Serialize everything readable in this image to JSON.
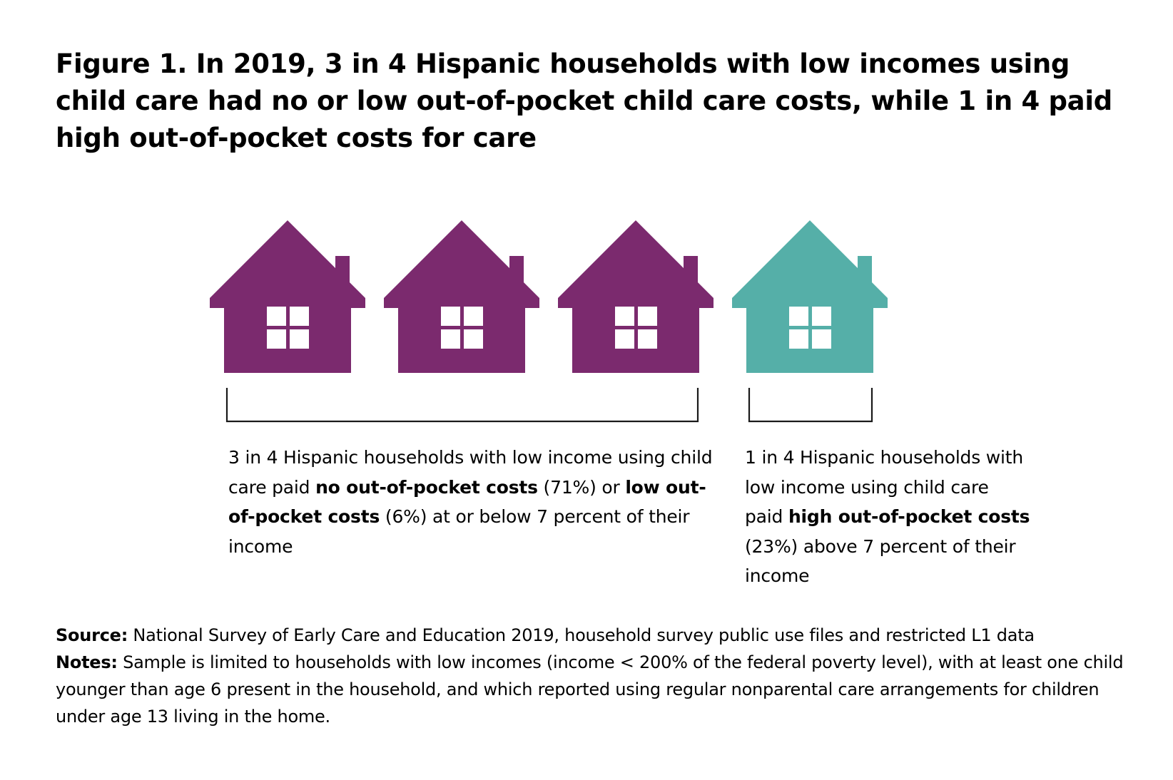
{
  "title": "Figure 1. In 2019, 3 in 4 Hispanic households with low incomes using child care had no or low out-of-pocket child care costs, while 1 in 4 paid high out-of-pocket costs for care",
  "colors": {
    "purple": "#7B2A6E",
    "teal": "#55AFA8",
    "bracket": "#1a1a1a"
  },
  "chart_data": {
    "type": "icon-array",
    "icon": "house-icon",
    "groups": [
      {
        "houses": 3,
        "color": "#7B2A6E",
        "ratio": "3 in 4",
        "categories": [
          {
            "label": "no out-of-pocket costs",
            "percent": 71
          },
          {
            "label": "low out-of-pocket costs",
            "percent": 6
          }
        ]
      },
      {
        "houses": 1,
        "color": "#55AFA8",
        "ratio": "1 in 4",
        "categories": [
          {
            "label": "high out-of-pocket costs",
            "percent": 23
          }
        ]
      }
    ]
  },
  "captions": {
    "left": {
      "part1": "3 in 4 Hispanic households with low income using child care paid ",
      "bold1": "no out-of-pocket costs",
      "part2": " (71%) or ",
      "bold2": "low out-of-pocket costs",
      "part3": " (6%) at or below 7 percent of their income"
    },
    "right": {
      "part1": "1 in 4 Hispanic households with low income using child care paid ",
      "bold1": "high out-of-pocket costs",
      "part2": " (23%) above 7 percent of their income"
    }
  },
  "source": {
    "label": "Source:",
    "text": " National Survey of Early Care and Education 2019, household survey public use files and restricted L1 data"
  },
  "notes": {
    "label": "Notes:",
    "text": " Sample is limited to households with low incomes (income < 200% of the federal poverty level), with at least one child younger than age 6 present in the household, and which reported using regular nonparental care arrangements for children under age 13 living in the home."
  }
}
